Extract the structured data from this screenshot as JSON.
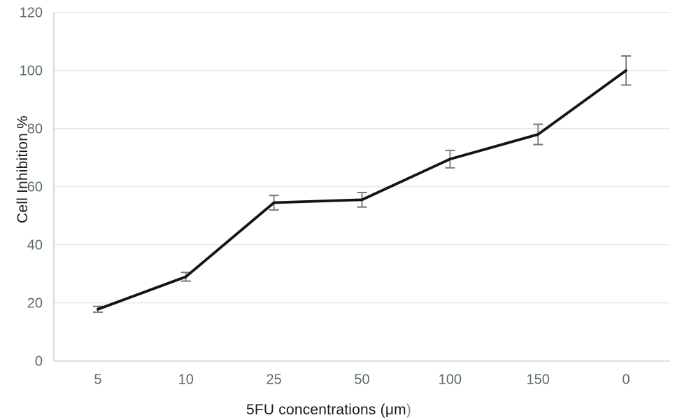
{
  "chart_data": {
    "type": "line",
    "title": "",
    "categories": [
      "5",
      "10",
      "25",
      "50",
      "100",
      "150",
      "0"
    ],
    "series": [
      {
        "name": "Cell Inhibition %",
        "values": [
          17.8,
          29,
          54.5,
          55.5,
          69.5,
          78,
          100
        ],
        "error_bars": [
          1,
          1.5,
          2.5,
          2.5,
          3,
          3.5,
          5
        ],
        "color": "#141414"
      }
    ],
    "xlabel": "5FU concentrations (μm)",
    "ylabel": "Cell Inhibition %",
    "ylim": [
      0,
      120
    ],
    "yticks": [
      0,
      20,
      40,
      60,
      80,
      100,
      120
    ],
    "grid": true,
    "legend": "none",
    "style": {
      "line_color": "#141414",
      "error_bar_color": "#6f7d7d",
      "gridline_color": "#e4e9e9",
      "axis_line_color": "#c6d0d0",
      "tick_label_color": "#5b6b6e",
      "axis_title_color": "#161a1a",
      "xlabel_suffix_color": "#8e8678",
      "background": "#ffffff"
    }
  }
}
